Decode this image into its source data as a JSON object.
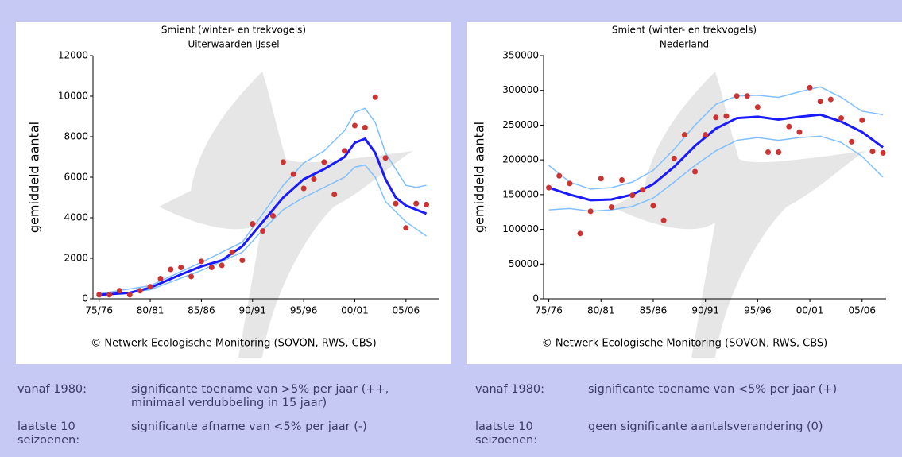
{
  "chart_data": [
    {
      "type": "line",
      "title": "Smient (winter- en trekvogels)",
      "subtitle": "Uiterwaarden IJssel",
      "ylabel": "gemiddeld aantal",
      "note": "© Netwerk Ecologische Monitoring (SOVON, RWS, CBS)",
      "xlim": [
        1974.4,
        2008.2
      ],
      "ylim": [
        0,
        12000
      ],
      "xticks": [
        {
          "value": 1975,
          "label": "75/76"
        },
        {
          "value": 1980,
          "label": "80/81"
        },
        {
          "value": 1985,
          "label": "85/86"
        },
        {
          "value": 1990,
          "label": "90/91"
        },
        {
          "value": 1995,
          "label": "95/96"
        },
        {
          "value": 2000,
          "label": "00/01"
        },
        {
          "value": 2005,
          "label": "05/06"
        }
      ],
      "yticks": [
        0,
        2000,
        4000,
        6000,
        8000,
        10000,
        12000
      ],
      "series": [
        {
          "kind": "line",
          "color": "#80c0ff",
          "x": [
            1975,
            1980,
            1985,
            1989,
            1991,
            1993,
            1995,
            1997,
            1999,
            2000,
            2001,
            2002,
            2003,
            2005,
            2006,
            2007
          ],
          "values": [
            250,
            650,
            1800,
            2800,
            4200,
            5600,
            6700,
            7300,
            8300,
            9200,
            9400,
            8700,
            7200,
            5600,
            5500,
            5600
          ]
        },
        {
          "kind": "line",
          "color": "#80c0ff",
          "x": [
            1975,
            1980,
            1985,
            1989,
            1991,
            1993,
            1995,
            1997,
            1999,
            2000,
            2001,
            2002,
            2003,
            2005,
            2007
          ],
          "values": [
            150,
            450,
            1400,
            2300,
            3400,
            4400,
            5000,
            5500,
            6000,
            6500,
            6600,
            6000,
            4800,
            3800,
            3100
          ]
        },
        {
          "kind": "line",
          "color": "#1a1aff",
          "x": [
            1975,
            1978,
            1980,
            1983,
            1985,
            1987,
            1989,
            1991,
            1993,
            1995,
            1997,
            1999,
            2000,
            2001,
            2002,
            2003,
            2004,
            2005,
            2007
          ],
          "values": [
            200,
            300,
            550,
            1200,
            1600,
            1900,
            2600,
            3800,
            5000,
            5900,
            6400,
            7000,
            7700,
            7900,
            7200,
            5900,
            5000,
            4600,
            4200
          ]
        },
        {
          "kind": "points",
          "color": "#cc3333",
          "x": [
            1975,
            1976,
            1977,
            1978,
            1979,
            1980,
            1981,
            1982,
            1983,
            1984,
            1985,
            1986,
            1987,
            1988,
            1989,
            1990,
            1991,
            1992,
            1993,
            1994,
            1995,
            1996,
            1997,
            1998,
            1999,
            2000,
            2001,
            2002,
            2003,
            2004,
            2005,
            2006,
            2007
          ],
          "values": [
            200,
            200,
            400,
            200,
            400,
            600,
            1000,
            1450,
            1550,
            1100,
            1850,
            1550,
            1650,
            2300,
            1900,
            3700,
            3350,
            4100,
            6750,
            6150,
            5450,
            5900,
            6750,
            5150,
            7300,
            8550,
            8450,
            9950,
            6950,
            4700,
            3500,
            4700,
            4650
          ]
        }
      ]
    },
    {
      "type": "line",
      "title": "Smient (winter- en trekvogels)",
      "subtitle": "Nederland",
      "ylabel": "gemiddeld aantal",
      "note": "© Netwerk Ecologische Monitoring (SOVON, RWS, CBS)",
      "xlim": [
        1974.5,
        2007.3
      ],
      "ylim": [
        0,
        350000
      ],
      "xticks": [
        {
          "value": 1975,
          "label": "75/76"
        },
        {
          "value": 1980,
          "label": "80/81"
        },
        {
          "value": 1985,
          "label": "85/86"
        },
        {
          "value": 1990,
          "label": "90/91"
        },
        {
          "value": 1995,
          "label": "95/96"
        },
        {
          "value": 2000,
          "label": "00/01"
        },
        {
          "value": 2005,
          "label": "05/06"
        }
      ],
      "yticks": [
        0,
        50000,
        100000,
        150000,
        200000,
        250000,
        300000,
        350000
      ],
      "series": [
        {
          "kind": "line",
          "color": "#80c0ff",
          "x": [
            1975,
            1977,
            1979,
            1981,
            1983,
            1985,
            1987,
            1989,
            1991,
            1993,
            1995,
            1997,
            1999,
            2001,
            2003,
            2005,
            2007
          ],
          "values": [
            192000,
            168000,
            158000,
            160000,
            168000,
            185000,
            215000,
            250000,
            280000,
            292000,
            293000,
            290000,
            298000,
            305000,
            290000,
            270000,
            265000
          ]
        },
        {
          "kind": "line",
          "color": "#80c0ff",
          "x": [
            1975,
            1977,
            1979,
            1981,
            1983,
            1985,
            1987,
            1989,
            1991,
            1993,
            1995,
            1997,
            1999,
            2001,
            2003,
            2005,
            2007
          ],
          "values": [
            128000,
            130000,
            126000,
            128000,
            133000,
            145000,
            168000,
            192000,
            213000,
            228000,
            232000,
            228000,
            232000,
            234000,
            225000,
            205000,
            175000
          ]
        },
        {
          "kind": "line",
          "color": "#1a1aff",
          "x": [
            1975,
            1977,
            1979,
            1981,
            1983,
            1985,
            1987,
            1989,
            1991,
            1993,
            1995,
            1997,
            1999,
            2001,
            2003,
            2005,
            2007
          ],
          "values": [
            160000,
            150000,
            142000,
            143000,
            150000,
            165000,
            190000,
            220000,
            245000,
            260000,
            262000,
            258000,
            262000,
            265000,
            255000,
            240000,
            218000
          ]
        },
        {
          "kind": "points",
          "color": "#cc3333",
          "x": [
            1975,
            1976,
            1977,
            1978,
            1979,
            1980,
            1981,
            1982,
            1983,
            1984,
            1985,
            1986,
            1987,
            1988,
            1989,
            1990,
            1991,
            1992,
            1993,
            1994,
            1995,
            1996,
            1997,
            1998,
            1999,
            2000,
            2001,
            2002,
            2003,
            2004,
            2005,
            2006,
            2007
          ],
          "values": [
            160000,
            177000,
            166000,
            94000,
            126000,
            173000,
            132000,
            171000,
            149000,
            157000,
            134000,
            113000,
            202000,
            236000,
            183000,
            236000,
            261000,
            263000,
            292000,
            292000,
            276000,
            211000,
            211000,
            248000,
            240000,
            304000,
            284000,
            287000,
            260000,
            226000,
            257000,
            212000,
            210000
          ]
        }
      ]
    }
  ],
  "trends": [
    {
      "rows": [
        {
          "label": "vanaf 1980:",
          "text": "significante toename van >5% per jaar (++, minimaal verdubbeling in 15 jaar)"
        },
        {
          "label": "laatste 10 seizoenen:",
          "text": "significante afname van <5% per jaar (-)"
        }
      ]
    },
    {
      "rows": [
        {
          "label": "vanaf 1980:",
          "text": "significante toename van <5% per jaar (+)"
        },
        {
          "label": "laatste 10 seizoenen:",
          "text": "geen significante aantalsverandering (0)"
        }
      ]
    }
  ]
}
